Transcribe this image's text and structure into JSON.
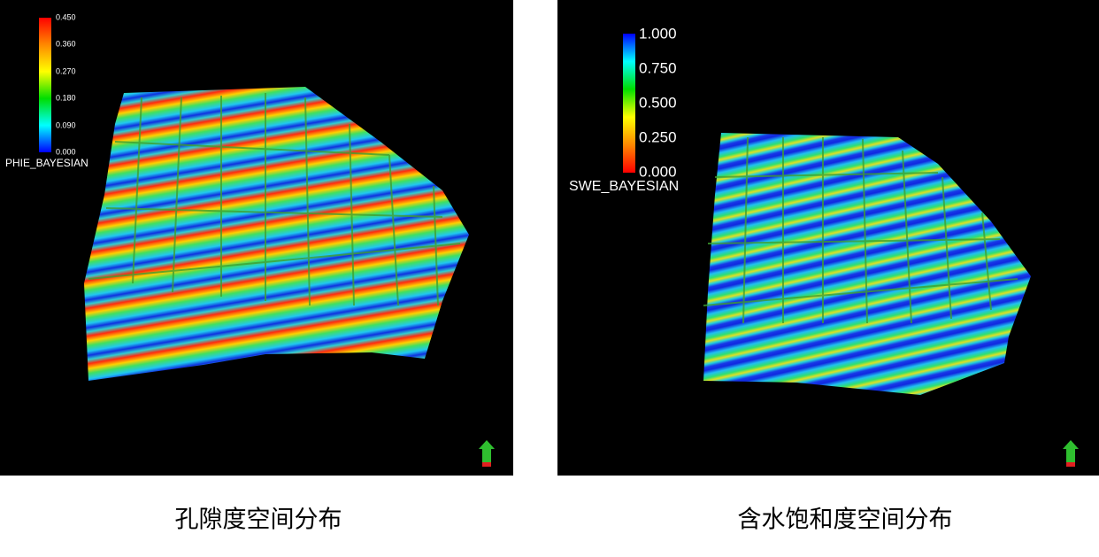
{
  "panels": [
    {
      "colorbar": {
        "ticks": [
          "0.450",
          "0.360",
          "0.270",
          "0.180",
          "0.090",
          "0.000"
        ],
        "name": "PHIE_BAYESIAN"
      },
      "caption": "孔隙度空间分布"
    },
    {
      "colorbar": {
        "ticks": [
          "1.000",
          "0.750",
          "0.500",
          "0.250",
          "0.000"
        ],
        "name": "SWE_BAYESIAN"
      },
      "caption": "含水饱和度空间分布"
    }
  ]
}
